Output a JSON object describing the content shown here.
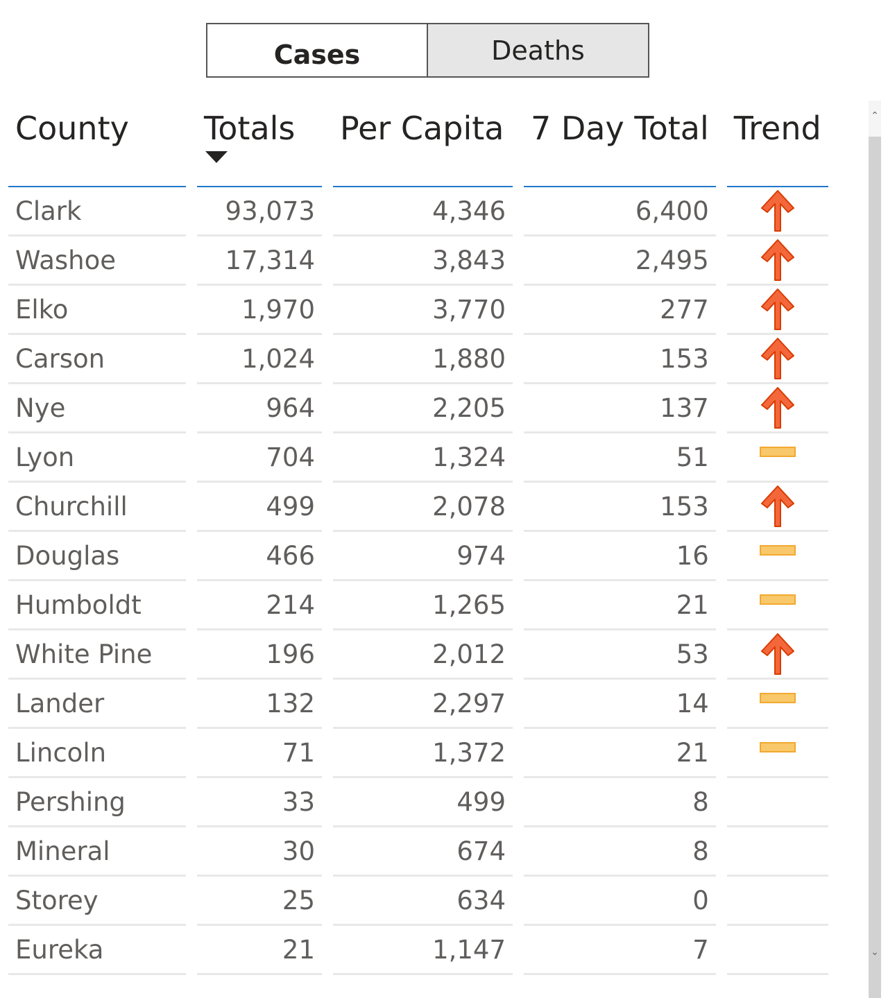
{
  "toggle": {
    "cases_label": "Cases",
    "deaths_label": "Deaths",
    "selected": "Cases"
  },
  "table": {
    "headers": [
      "County",
      "Totals",
      "Per Capita",
      "7 Day Total",
      "Trend"
    ],
    "sorted_by": "Totals",
    "sort_direction": "descending",
    "rows": [
      {
        "county": "Clark",
        "totals": "93,073",
        "per_capita": "4,346",
        "seven_day": "6,400",
        "trend": "up"
      },
      {
        "county": "Washoe",
        "totals": "17,314",
        "per_capita": "3,843",
        "seven_day": "2,495",
        "trend": "up"
      },
      {
        "county": "Elko",
        "totals": "1,970",
        "per_capita": "3,770",
        "seven_day": "277",
        "trend": "up"
      },
      {
        "county": "Carson",
        "totals": "1,024",
        "per_capita": "1,880",
        "seven_day": "153",
        "trend": "up"
      },
      {
        "county": "Nye",
        "totals": "964",
        "per_capita": "2,205",
        "seven_day": "137",
        "trend": "up"
      },
      {
        "county": "Lyon",
        "totals": "704",
        "per_capita": "1,324",
        "seven_day": "51",
        "trend": "flat"
      },
      {
        "county": "Churchill",
        "totals": "499",
        "per_capita": "2,078",
        "seven_day": "153",
        "trend": "up"
      },
      {
        "county": "Douglas",
        "totals": "466",
        "per_capita": "974",
        "seven_day": "16",
        "trend": "flat"
      },
      {
        "county": "Humboldt",
        "totals": "214",
        "per_capita": "1,265",
        "seven_day": "21",
        "trend": "flat"
      },
      {
        "county": "White Pine",
        "totals": "196",
        "per_capita": "2,012",
        "seven_day": "53",
        "trend": "up"
      },
      {
        "county": "Lander",
        "totals": "132",
        "per_capita": "2,297",
        "seven_day": "14",
        "trend": "flat"
      },
      {
        "county": "Lincoln",
        "totals": "71",
        "per_capita": "1,372",
        "seven_day": "21",
        "trend": "flat"
      },
      {
        "county": "Pershing",
        "totals": "33",
        "per_capita": "499",
        "seven_day": "8",
        "trend": ""
      },
      {
        "county": "Mineral",
        "totals": "30",
        "per_capita": "674",
        "seven_day": "8",
        "trend": ""
      },
      {
        "county": "Storey",
        "totals": "25",
        "per_capita": "634",
        "seven_day": "0",
        "trend": ""
      },
      {
        "county": "Eureka",
        "totals": "21",
        "per_capita": "1,147",
        "seven_day": "7",
        "trend": ""
      }
    ]
  },
  "colors": {
    "header_rule": "#1f77c8",
    "trend_up_fill": "#f4673a",
    "trend_up_stroke": "#d83b01",
    "trend_flat_fill": "#f8c86a",
    "trend_flat_stroke": "#f2a930"
  },
  "icons": {
    "up": "arrow-up-icon",
    "flat": "dash-icon",
    "sort": "sort-descending-icon"
  }
}
